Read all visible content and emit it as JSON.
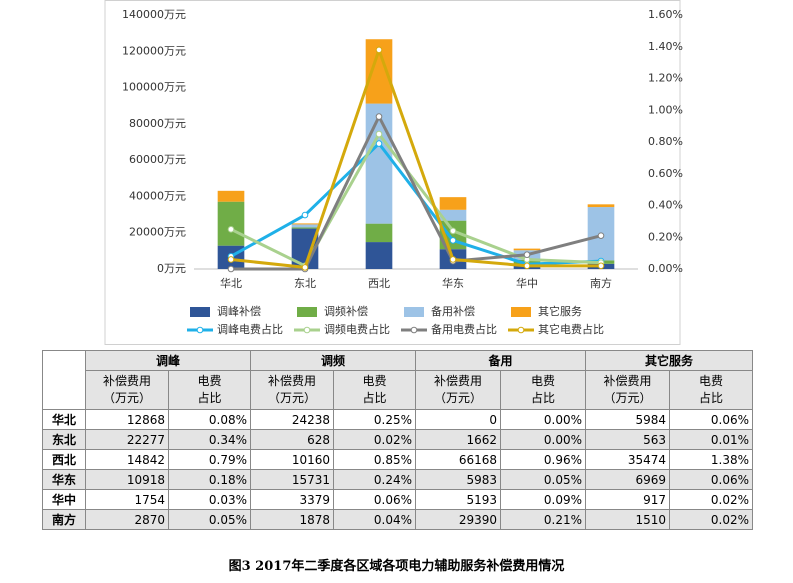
{
  "chart_data": {
    "type": "bar",
    "stacked": true,
    "categories": [
      "华北",
      "东北",
      "西北",
      "华东",
      "华中",
      "南方"
    ],
    "series": [
      {
        "name": "调峰补偿",
        "color": "#2f5597",
        "values": [
          12868,
          22277,
          14842,
          10918,
          1754,
          2870
        ]
      },
      {
        "name": "调频补偿",
        "color": "#70ad47",
        "values": [
          24238,
          628,
          10160,
          15731,
          3379,
          1878
        ]
      },
      {
        "name": "备用补偿",
        "color": "#9dc3e6",
        "values": [
          0,
          1662,
          66168,
          5983,
          5193,
          29390
        ]
      },
      {
        "name": "其它服务",
        "color": "#f7a11a",
        "values": [
          5984,
          563,
          35474,
          6969,
          917,
          1510
        ]
      },
      {
        "name": "调峰电费占比",
        "type": "line",
        "axis": "y2",
        "color": "#1fb0e8",
        "values": [
          0.08,
          0.34,
          0.79,
          0.18,
          0.03,
          0.05
        ]
      },
      {
        "name": "调频电费占比",
        "type": "line",
        "axis": "y2",
        "color": "#a9d18e",
        "values": [
          0.25,
          0.02,
          0.85,
          0.24,
          0.06,
          0.04
        ]
      },
      {
        "name": "备用电费占比",
        "type": "line",
        "axis": "y2",
        "color": "#7f7f7f",
        "values": [
          0.0,
          0.0,
          0.96,
          0.05,
          0.09,
          0.21
        ]
      },
      {
        "name": "其它电费占比",
        "type": "line",
        "axis": "y2",
        "color": "#d4a90c",
        "values": [
          0.06,
          0.01,
          1.38,
          0.06,
          0.02,
          0.02
        ]
      }
    ],
    "ylim": [
      0,
      140000
    ],
    "yticks": [
      {
        "value": 0,
        "label": "0万元"
      },
      {
        "value": 20000,
        "label": "20000万元"
      },
      {
        "value": 40000,
        "label": "40000万元"
      },
      {
        "value": 60000,
        "label": "60000万元"
      },
      {
        "value": 80000,
        "label": "80000万元"
      },
      {
        "value": 100000,
        "label": "100000万元"
      },
      {
        "value": 120000,
        "label": "120000万元"
      },
      {
        "value": 140000,
        "label": "140000万元"
      }
    ],
    "y2lim": [
      0,
      1.6
    ],
    "y2ticks": [
      {
        "value": 0,
        "label": "0.00%"
      },
      {
        "value": 0.2,
        "label": "0.20%"
      },
      {
        "value": 0.4,
        "label": "0.40%"
      },
      {
        "value": 0.6,
        "label": "0.60%"
      },
      {
        "value": 0.8,
        "label": "0.80%"
      },
      {
        "value": 1.0,
        "label": "1.00%"
      },
      {
        "value": 1.2,
        "label": "1.20%"
      },
      {
        "value": 1.4,
        "label": "1.40%"
      },
      {
        "value": 1.6,
        "label": "1.60%"
      }
    ],
    "grid": false,
    "legend": "bottom"
  },
  "table": {
    "groups": [
      "调峰",
      "调频",
      "备用",
      "其它服务"
    ],
    "subheaders": [
      [
        "补偿费用",
        "（万元）"
      ],
      [
        "电费",
        "占比"
      ],
      [
        "补偿费用",
        "（万元）"
      ],
      [
        "电费",
        "占比"
      ],
      [
        "补偿费用",
        "（万元）"
      ],
      [
        "电费",
        "占比"
      ],
      [
        "补偿费用",
        "（万元）"
      ],
      [
        "电费",
        "占比"
      ]
    ],
    "rows": [
      [
        "华北",
        "12868",
        "0.08%",
        "24238",
        "0.25%",
        "0",
        "0.00%",
        "5984",
        "0.06%"
      ],
      [
        "东北",
        "22277",
        "0.34%",
        "628",
        "0.02%",
        "1662",
        "0.00%",
        "563",
        "0.01%"
      ],
      [
        "西北",
        "14842",
        "0.79%",
        "10160",
        "0.85%",
        "66168",
        "0.96%",
        "35474",
        "1.38%"
      ],
      [
        "华东",
        "10918",
        "0.18%",
        "15731",
        "0.24%",
        "5983",
        "0.05%",
        "6969",
        "0.06%"
      ],
      [
        "华中",
        "1754",
        "0.03%",
        "3379",
        "0.06%",
        "5193",
        "0.09%",
        "917",
        "0.02%"
      ],
      [
        "南方",
        "2870",
        "0.05%",
        "1878",
        "0.04%",
        "29390",
        "0.21%",
        "1510",
        "0.02%"
      ]
    ]
  },
  "caption": "图3  2017年二季度各区域各项电力辅助服务补偿费用情况"
}
